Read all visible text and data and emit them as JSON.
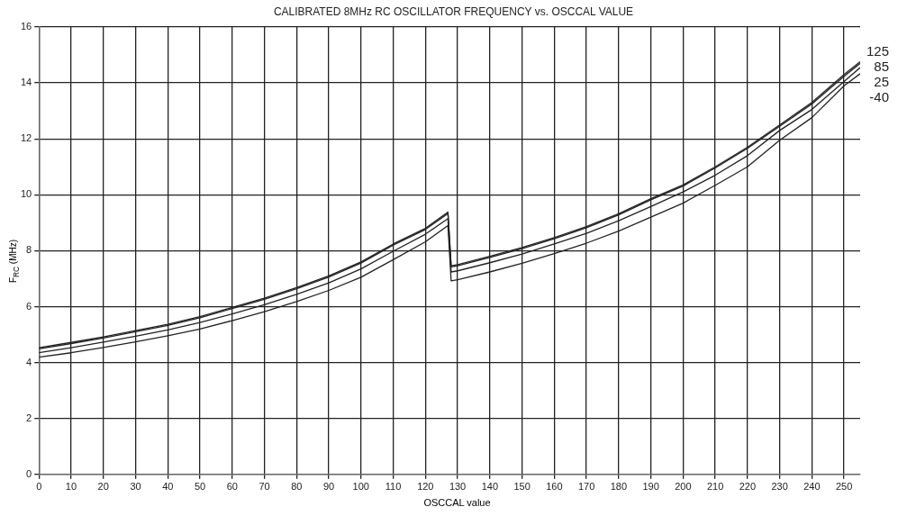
{
  "chart_data": {
    "type": "line",
    "title": "CALIBRATED 8MHz RC OSCILLATOR FREQUENCY vs. OSCCAL VALUE",
    "xlabel": "OSCCAL value",
    "ylabel": "F$_{RC}$ (MHz)",
    "x": [
      0,
      10,
      20,
      30,
      40,
      50,
      60,
      70,
      80,
      90,
      100,
      110,
      120,
      127,
      128,
      130,
      140,
      150,
      160,
      170,
      180,
      190,
      200,
      210,
      220,
      230,
      240,
      250,
      255
    ],
    "series": [
      {
        "name": "125",
        "color": "#222222",
        "values": [
          4.53,
          4.72,
          4.92,
          5.14,
          5.37,
          5.64,
          5.97,
          6.3,
          6.68,
          7.1,
          7.6,
          8.24,
          8.8,
          9.38,
          7.46,
          7.5,
          7.8,
          8.11,
          8.47,
          8.86,
          9.32,
          9.86,
          10.35,
          11.0,
          11.7,
          12.5,
          13.3,
          14.3,
          14.76
        ]
      },
      {
        "name": "85",
        "color": "#222222",
        "values": [
          4.49,
          4.68,
          4.88,
          5.1,
          5.33,
          5.6,
          5.93,
          6.26,
          6.64,
          7.06,
          7.56,
          8.2,
          8.76,
          9.33,
          7.42,
          7.46,
          7.76,
          8.07,
          8.43,
          8.82,
          9.28,
          9.82,
          10.31,
          10.96,
          11.66,
          12.45,
          13.25,
          14.24,
          14.7
        ]
      },
      {
        "name": "25",
        "color": "#222222",
        "values": [
          4.35,
          4.53,
          4.73,
          4.94,
          5.17,
          5.43,
          5.74,
          6.07,
          6.44,
          6.85,
          7.35,
          7.98,
          8.59,
          9.15,
          7.24,
          7.28,
          7.57,
          7.88,
          8.24,
          8.62,
          9.07,
          9.58,
          10.1,
          10.7,
          11.4,
          12.3,
          13.05,
          14.05,
          14.55
        ]
      },
      {
        "name": "-40",
        "color": "#222222",
        "values": [
          4.19,
          4.35,
          4.54,
          4.74,
          4.96,
          5.2,
          5.5,
          5.82,
          6.18,
          6.58,
          7.05,
          7.68,
          8.32,
          8.9,
          6.92,
          6.96,
          7.24,
          7.55,
          7.9,
          8.27,
          8.7,
          9.2,
          9.7,
          10.34,
          11.0,
          11.95,
          12.76,
          13.9,
          14.33
        ]
      }
    ],
    "xlim": [
      0,
      255
    ],
    "xticks": [
      0,
      10,
      20,
      30,
      40,
      50,
      60,
      70,
      80,
      90,
      100,
      110,
      120,
      130,
      140,
      150,
      160,
      170,
      180,
      190,
      200,
      210,
      220,
      230,
      240,
      250
    ],
    "ylim": [
      0,
      16
    ],
    "yticks": [
      0,
      2,
      4,
      6,
      8,
      10,
      12,
      14,
      16
    ],
    "grid": true,
    "legend": "right",
    "marker": "none",
    "line_style": "solid"
  }
}
